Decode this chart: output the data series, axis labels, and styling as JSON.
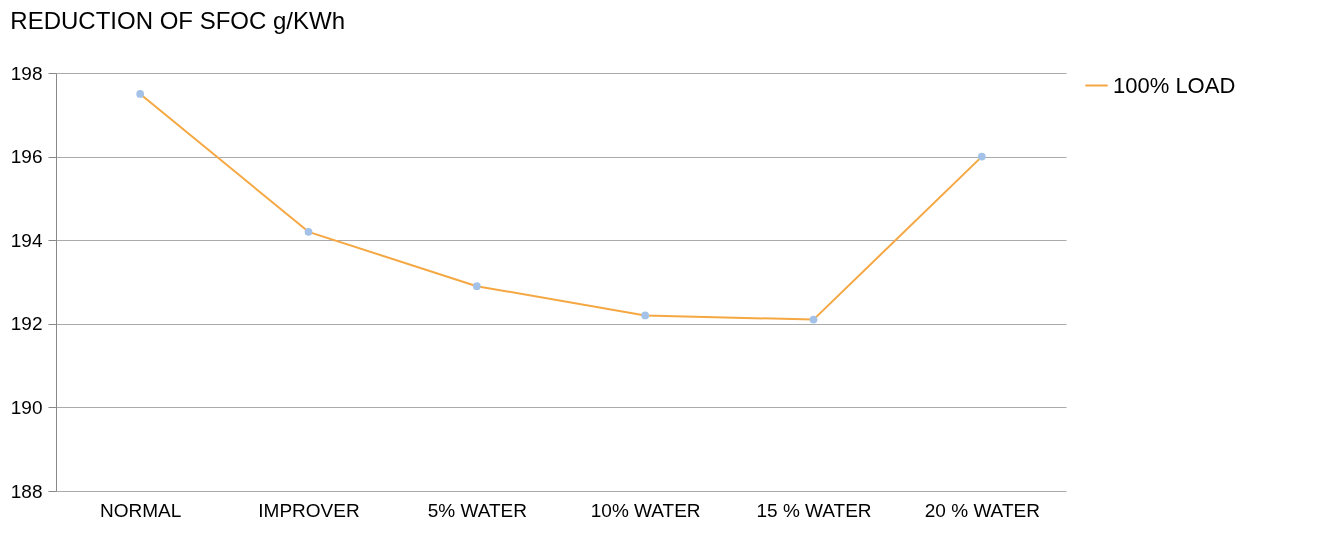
{
  "chart_data": {
    "type": "line",
    "title": "REDUCTION OF SFOC  g/KWh",
    "categories": [
      "NORMAL",
      "IMPROVER",
      "5% WATER",
      "10% WATER",
      "15 % WATER",
      "20 % WATER"
    ],
    "series": [
      {
        "name": "100% LOAD",
        "color": "#f5a742",
        "colors": [
          "#a4c2e8",
          "#a4c2e8",
          "#a4c2e8",
          "#a4c2e8",
          "#a4c2e8",
          "#a4c2e8"
        ],
        "values": [
          197.5,
          194.2,
          192.9,
          192.2,
          192.1,
          196.0
        ]
      }
    ],
    "ylim": [
      188,
      198
    ],
    "yticks": [
      188,
      190,
      192,
      194,
      196,
      198
    ],
    "grid": "y",
    "legend": "right",
    "marker": "circle",
    "line_style": "solid"
  }
}
